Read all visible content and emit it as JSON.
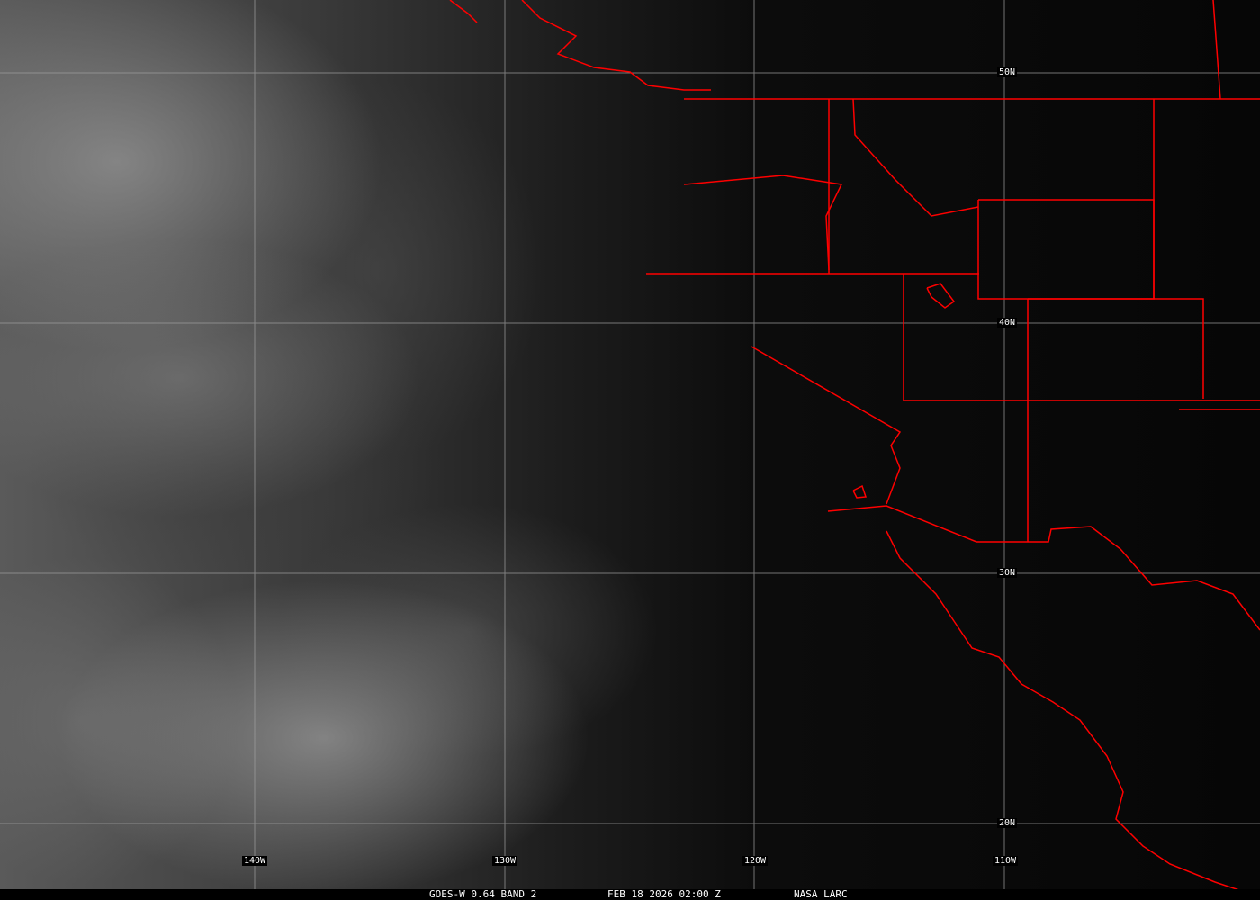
{
  "image": {
    "satellite": "GOES-W",
    "caption": {
      "product": "GOES-W 0.64 BAND 2",
      "datetime": "FEB 18 2026 02:00 Z",
      "credit": "NASA LARC"
    },
    "latitude_labels": [
      "50N",
      "40N",
      "30N",
      "20N"
    ],
    "longitude_labels": [
      "140W",
      "130W",
      "120W",
      "110W"
    ],
    "colors": {
      "boundaries": "#ff0000",
      "grid": "#a0a0a0",
      "background": "#000000"
    }
  }
}
